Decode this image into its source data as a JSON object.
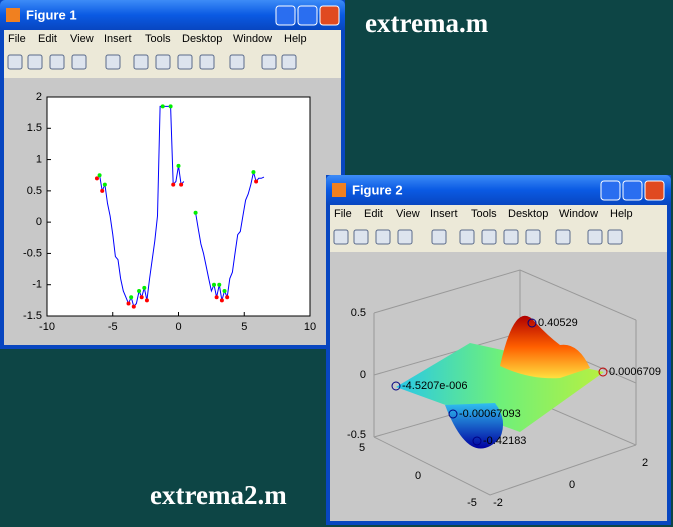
{
  "labels": {
    "top": "extrema.m",
    "bottom": "extrema2.m"
  },
  "menu": [
    "File",
    "Edit",
    "View",
    "Insert",
    "Tools",
    "Desktop",
    "Window",
    "Help"
  ],
  "figure1": {
    "title": "Figure 1",
    "chart": {
      "type": "line",
      "x": [
        -6.2,
        -6.0,
        -5.8,
        -5.6,
        -5.4,
        -5.2,
        -5.0,
        -4.8,
        -4.6,
        -4.4,
        -4.2,
        -4.0,
        -3.8,
        -3.6,
        -3.4,
        -3.2,
        -3.0,
        -2.8,
        -2.6,
        -2.4,
        -2.2,
        -2.0,
        -1.8,
        -1.6,
        -1.4,
        -1.2,
        -1.0,
        -0.8,
        -0.6,
        -0.4,
        -0.2,
        0,
        0.2,
        0.4,
        null,
        1.3,
        1.5,
        1.7,
        1.9,
        2.1,
        2.3,
        2.5,
        2.7,
        2.9,
        3.1,
        3.3,
        3.5,
        3.7,
        3.9,
        4.1,
        4.3,
        4.5,
        4.7,
        4.9,
        5.1,
        5.3,
        5.5,
        5.7,
        5.9,
        6.1,
        6.3,
        6.5
      ],
      "y": [
        0.7,
        0.75,
        0.5,
        0.6,
        0.3,
        0.1,
        -0.2,
        -0.55,
        -0.6,
        -0.9,
        -1.1,
        -1.2,
        -1.3,
        -1.2,
        -1.35,
        -1.3,
        -1.1,
        -1.2,
        -1.05,
        -1.25,
        -0.9,
        -0.6,
        -0.3,
        0.1,
        1.85,
        1.85,
        1.85,
        1.85,
        1.85,
        0.6,
        0.65,
        0.9,
        0.6,
        0.65,
        null,
        0.15,
        -0.1,
        -0.35,
        -0.5,
        -0.7,
        -0.9,
        -1.1,
        -1.0,
        -1.2,
        -1.0,
        -1.25,
        -1.1,
        -1.2,
        -0.9,
        -0.8,
        -0.5,
        -0.2,
        -0.15,
        0.1,
        0.35,
        0.45,
        0.6,
        0.8,
        0.65,
        0.7,
        0.7,
        0.72
      ],
      "color": "#0000ff",
      "maxima": {
        "color": "#00ee00",
        "x": [
          -6.0,
          -5.6,
          -3.6,
          -3.0,
          -2.6,
          -1.2,
          -0.6,
          0,
          1.3,
          2.7,
          3.1,
          3.5,
          5.7
        ],
        "y": [
          0.75,
          0.6,
          -1.2,
          -1.1,
          -1.05,
          1.85,
          1.85,
          0.9,
          0.15,
          -1.0,
          -1.0,
          -1.1,
          0.8
        ]
      },
      "minima": {
        "color": "#ff0000",
        "x": [
          -6.2,
          -5.8,
          -3.8,
          -3.4,
          -2.8,
          -2.4,
          -0.4,
          0.2,
          2.9,
          3.3,
          3.7,
          5.9
        ],
        "y": [
          0.7,
          0.5,
          -1.3,
          -1.35,
          -1.2,
          -1.25,
          0.6,
          0.6,
          -1.2,
          -1.25,
          -1.2,
          0.65
        ]
      },
      "xlim": [
        -10,
        10
      ],
      "ylim": [
        -1.5,
        2
      ],
      "xticks": [
        -10,
        -5,
        0,
        5,
        10
      ],
      "yticks": [
        -1.5,
        -1,
        -0.5,
        0,
        0.5,
        1,
        1.5,
        2
      ]
    }
  },
  "figure2": {
    "title": "Figure 2",
    "zticks": [
      0.5,
      0,
      -0.5
    ],
    "xticks": [
      5,
      0,
      -5
    ],
    "yticks": [
      -2,
      0,
      2
    ],
    "annotations": [
      "0.40529",
      "0.0006709",
      "-4.5207e-006",
      "-0.00067093",
      "-0.42183"
    ]
  }
}
